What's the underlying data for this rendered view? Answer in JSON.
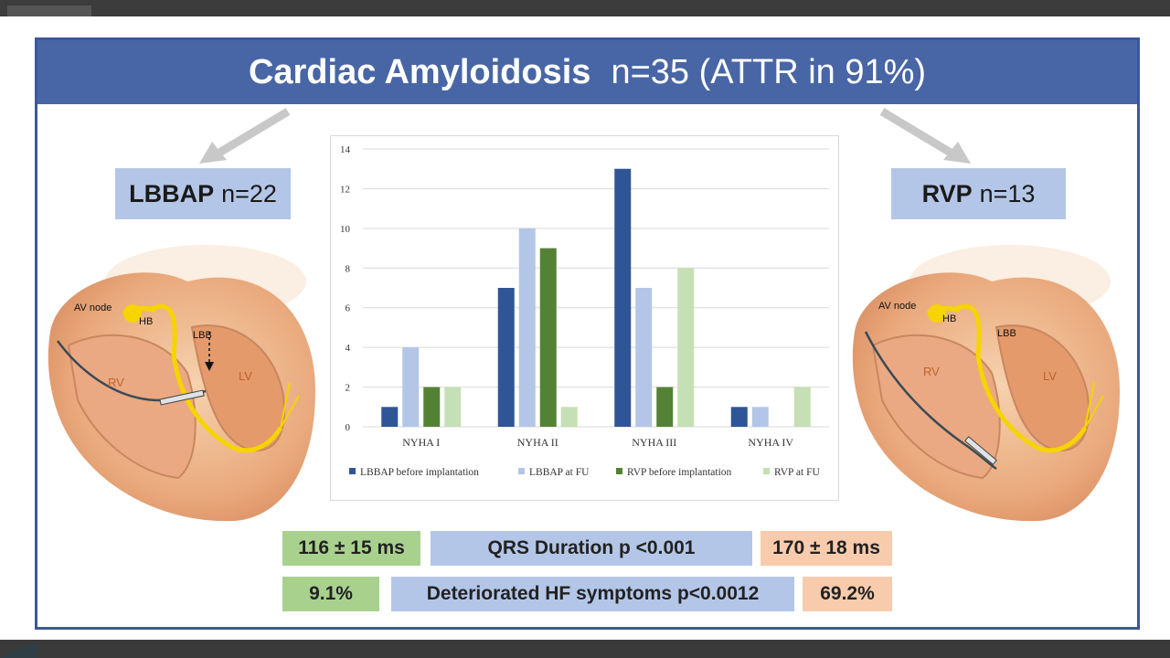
{
  "slide": {
    "title_bold": "Cardiac Amyloidosis",
    "title_rest": "n=35 (ATTR in 91%)"
  },
  "groups": {
    "left": {
      "name": "LBBAP",
      "count": "n=22"
    },
    "right": {
      "name": "RVP",
      "count": "n=13"
    }
  },
  "heart_left": {
    "av_node": "AV node",
    "hb": "HB",
    "lbb": "LBB",
    "rv": "RV",
    "lv": "LV"
  },
  "heart_right": {
    "av_node": "AV node",
    "hb": "HB",
    "lbb": "LBB",
    "rv": "RV",
    "lv": "LV"
  },
  "chart_data": {
    "type": "bar",
    "categories": [
      "NYHA I",
      "NYHA II",
      "NYHA III",
      "NYHA  IV"
    ],
    "series": [
      {
        "name": "LBBAP before implantation",
        "color": "#2f5597",
        "values": [
          1,
          7,
          13,
          1
        ]
      },
      {
        "name": "LBBAP at FU",
        "color": "#b4c6e7",
        "values": [
          4,
          10,
          7,
          1
        ]
      },
      {
        "name": "RVP before implantation",
        "color": "#548235",
        "values": [
          2,
          9,
          2,
          0
        ]
      },
      {
        "name": "RVP at FU",
        "color": "#c5e0b4",
        "values": [
          2,
          1,
          8,
          2
        ]
      }
    ],
    "ylim": [
      0,
      14
    ],
    "yticks": [
      "0",
      "2",
      "4",
      "6",
      "8",
      "10",
      "12",
      "14"
    ],
    "grid": true,
    "legend": "bottom"
  },
  "stats": {
    "row1": {
      "left": "116 ± 15 ms",
      "center": "QRS Duration p <0.001",
      "right": "170 ± 18 ms"
    },
    "row2": {
      "left": "9.1%",
      "center": "Deteriorated HF symptoms p<0.0012",
      "right": "69.2%"
    }
  },
  "colors": {
    "banner": "#4866a5",
    "group_box": "#b4c6e7",
    "lbbap_stat": "#a9d18e",
    "rvp_stat": "#f8cbad"
  }
}
